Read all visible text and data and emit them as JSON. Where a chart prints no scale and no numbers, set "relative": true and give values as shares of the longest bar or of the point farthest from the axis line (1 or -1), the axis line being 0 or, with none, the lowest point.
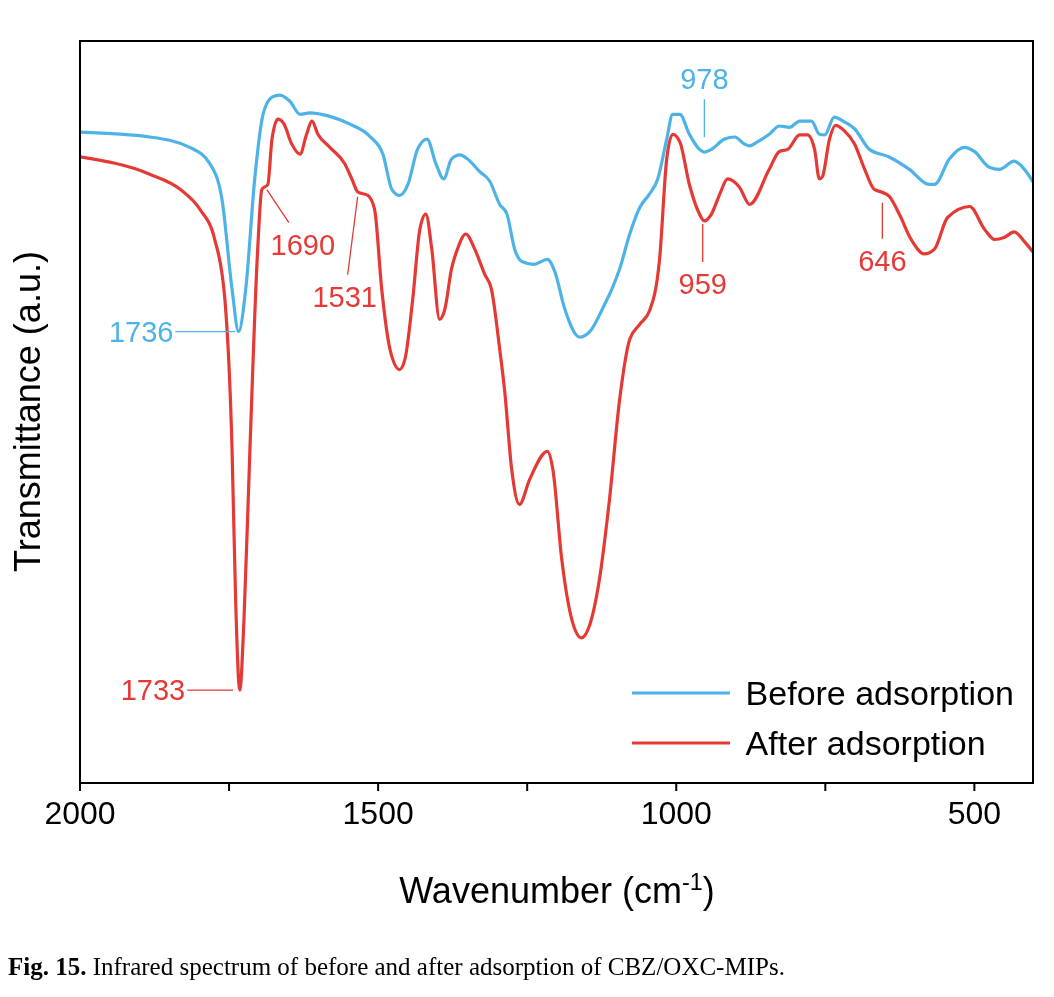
{
  "chart_data": {
    "type": "line",
    "xlabel": "Wavenumber (cm$^{-1}$)",
    "ylabel": "Transmittance (a.u.)",
    "relative": true,
    "xlim": [
      2000,
      400
    ],
    "xticks": [
      2000,
      {
        "value": 1750,
        "label": null
      },
      1500,
      {
        "value": 1250,
        "label": null
      },
      1000,
      {
        "value": 750,
        "label": null
      },
      500
    ],
    "legend": "bottom right",
    "series": [
      {
        "name": "Before adsorption",
        "color": "#4db3e6",
        "x": [
          2000,
          1883,
          1816,
          1782,
          1762,
          1745,
          1734,
          1722,
          1707,
          1693,
          1678,
          1665,
          1648,
          1631,
          1615,
          1581,
          1548,
          1514,
          1492,
          1477,
          1464,
          1450,
          1434,
          1418,
          1403,
          1390,
          1377,
          1363,
          1350,
          1330,
          1313,
          1296,
          1284,
          1271,
          1259,
          1239,
          1216,
          1204,
          1187,
          1162,
          1145,
          1120,
          1108,
          1095,
          1078,
          1061,
          1045,
          1031,
          1016,
          1006,
          994,
          978,
          961,
          953,
          941,
          919,
          902,
          886,
          877,
          864,
          844,
          827,
          810,
          793,
          773,
          760,
          751,
          735,
          718,
          701,
          676,
          643,
          609,
          576,
          567,
          542,
          517,
          500,
          475,
          458,
          433,
          425,
          401
        ],
        "values": [
          0.946,
          0.939,
          0.924,
          0.9,
          0.849,
          0.718,
          0.656,
          0.718,
          0.878,
          0.972,
          0.997,
          1,
          0.991,
          0.972,
          0.974,
          0.969,
          0.958,
          0.94,
          0.914,
          0.863,
          0.854,
          0.87,
          0.921,
          0.936,
          0.9,
          0.878,
          0.907,
          0.913,
          0.907,
          0.889,
          0.875,
          0.841,
          0.827,
          0.776,
          0.758,
          0.754,
          0.761,
          0.744,
          0.689,
          0.648,
          0.656,
          0.696,
          0.718,
          0.747,
          0.798,
          0.837,
          0.856,
          0.878,
          0.936,
          0.972,
          0.972,
          0.943,
          0.921,
          0.917,
          0.921,
          0.936,
          0.939,
          0.929,
          0.926,
          0.932,
          0.943,
          0.955,
          0.953,
          0.962,
          0.962,
          0.943,
          0.942,
          0.968,
          0.961,
          0.951,
          0.921,
          0.91,
          0.892,
          0.87,
          0.87,
          0.907,
          0.924,
          0.918,
          0.895,
          0.892,
          0.904,
          0.9,
          0.873
        ]
      },
      {
        "name": "After adsorption",
        "color": "#e53935",
        "x": [
          2000,
          1883,
          1832,
          1799,
          1774,
          1757,
          1745,
          1739,
          1732,
          1725,
          1715,
          1702,
          1695,
          1685,
          1678,
          1668,
          1658,
          1645,
          1631,
          1620,
          1611,
          1601,
          1581,
          1556,
          1544,
          1534,
          1517,
          1506,
          1494,
          1480,
          1464,
          1455,
          1442,
          1430,
          1420,
          1410,
          1397,
          1388,
          1377,
          1367,
          1353,
          1338,
          1321,
          1310,
          1296,
          1288,
          1276,
          1263,
          1246,
          1216,
          1207,
          1192,
          1175,
          1159,
          1145,
          1129,
          1112,
          1095,
          1078,
          1061,
          1045,
          1028,
          1016,
          1006,
          994,
          978,
          961,
          953,
          941,
          927,
          914,
          894,
          877,
          844,
          827,
          813,
          793,
          780,
          768,
          760,
          755,
          743,
          733,
          718,
          701,
          684,
          668,
          656,
          643,
          626,
          606,
          584,
          567,
          545,
          508,
          483,
          466,
          450,
          433,
          416,
          401
        ],
        "values": [
          0.91,
          0.885,
          0.863,
          0.834,
          0.79,
          0.703,
          0.485,
          0.266,
          0.135,
          0.237,
          0.485,
          0.776,
          0.863,
          0.87,
          0.936,
          0.965,
          0.958,
          0.929,
          0.914,
          0.943,
          0.962,
          0.943,
          0.924,
          0.9,
          0.878,
          0.859,
          0.854,
          0.834,
          0.718,
          0.63,
          0.601,
          0.616,
          0.703,
          0.805,
          0.827,
          0.776,
          0.674,
          0.689,
          0.747,
          0.776,
          0.798,
          0.776,
          0.739,
          0.718,
          0.63,
          0.572,
          0.456,
          0.405,
          0.441,
          0.482,
          0.456,
          0.325,
          0.237,
          0.211,
          0.23,
          0.295,
          0.412,
          0.557,
          0.645,
          0.667,
          0.686,
          0.761,
          0.907,
          0.943,
          0.932,
          0.87,
          0.827,
          0.817,
          0.827,
          0.856,
          0.878,
          0.866,
          0.841,
          0.892,
          0.918,
          0.921,
          0.942,
          0.942,
          0.921,
          0.878,
          0.881,
          0.936,
          0.956,
          0.948,
          0.929,
          0.892,
          0.863,
          0.859,
          0.853,
          0.827,
          0.79,
          0.769,
          0.776,
          0.822,
          0.838,
          0.805,
          0.79,
          0.793,
          0.801,
          0.787,
          0.771
        ]
      }
    ],
    "annotations": [
      {
        "text": "1736",
        "x": 1736,
        "y": 0.656
      },
      {
        "text": "1733",
        "x": 1733,
        "y": 0.135
      },
      {
        "text": "1690",
        "x": 1690,
        "y": 0.867
      },
      {
        "text": "1531",
        "x": 1531,
        "y": 0.858
      },
      {
        "text": "978",
        "x": 978,
        "y": 0.943
      },
      {
        "text": "959",
        "x": 959,
        "y": 0.827
      },
      {
        "text": "646",
        "x": 646,
        "y": 0.855
      },
      "Fig. 15. Infrared spectrum of before and after adsorption of CBZ/OXC-MIPs."
    ]
  }
}
